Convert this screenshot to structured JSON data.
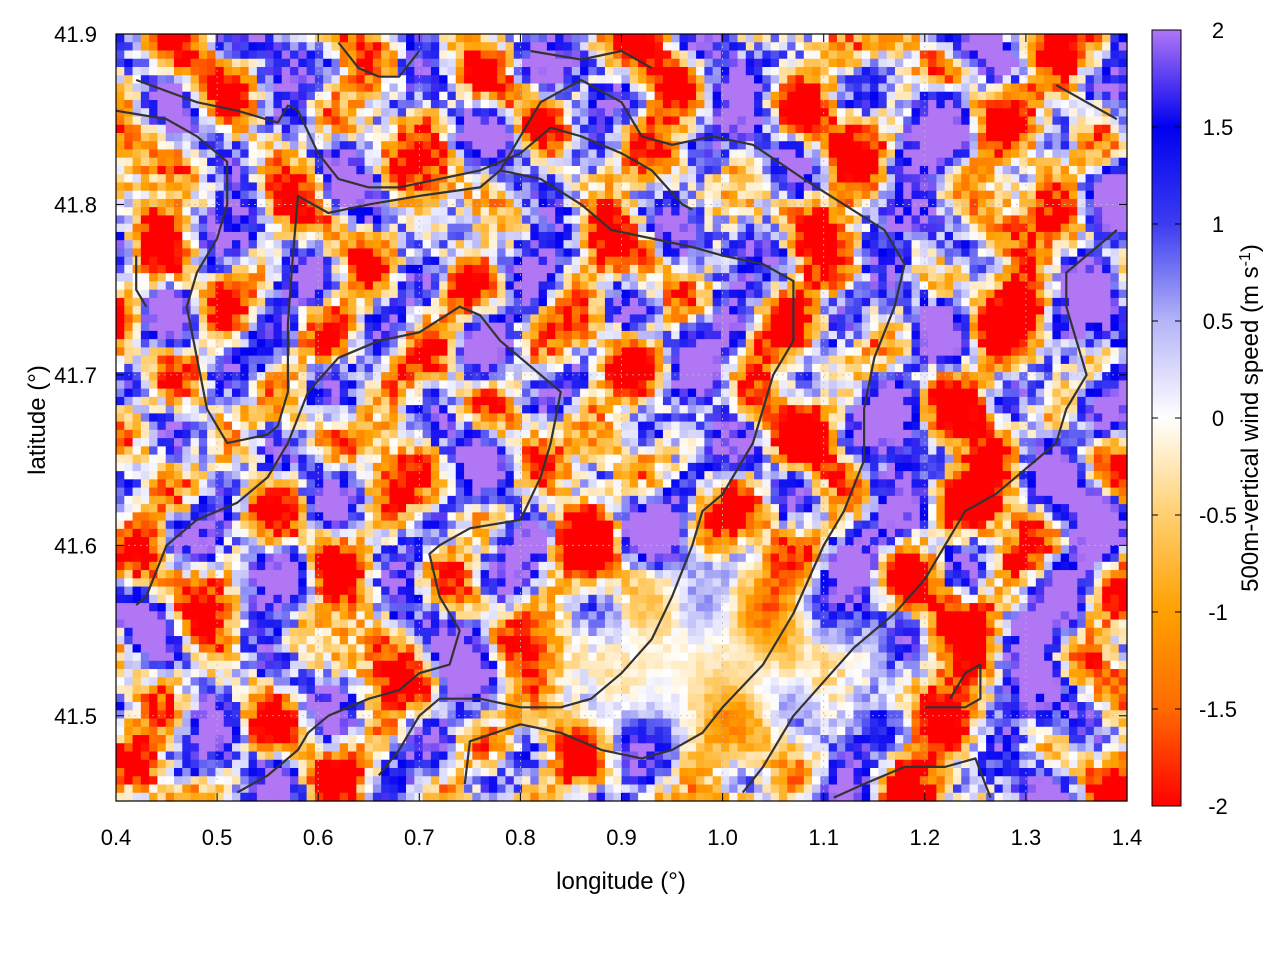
{
  "chart_data": {
    "type": "heatmap",
    "title": "",
    "xlabel": "longitude (°)",
    "ylabel": "latitude (°)",
    "colorbar_label": "500m-vertical wind speed (m s",
    "colorbar_label_sup": "-1",
    "colorbar_label_end": ")",
    "xlim": [
      0.4,
      1.4
    ],
    "ylim": [
      41.45,
      41.9
    ],
    "x_ticks": [
      0.4,
      0.5,
      0.6,
      0.7,
      0.8,
      0.9,
      1.0,
      1.1,
      1.2,
      1.3,
      1.4
    ],
    "x_tick_labels": [
      "0.4",
      "0.5",
      "0.6",
      "0.7",
      "0.8",
      "0.9",
      "1.0",
      "1.1",
      "1.2",
      "1.3",
      "1.4"
    ],
    "y_ticks": [
      41.5,
      41.6,
      41.7,
      41.8,
      41.9
    ],
    "y_tick_labels": [
      "41.5",
      "41.6",
      "41.7",
      "41.8",
      "41.9"
    ],
    "colorbar_range": [
      -2,
      2
    ],
    "colorbar_ticks": [
      2,
      1.5,
      1,
      0.5,
      0,
      -0.5,
      -1,
      -1.5,
      -2
    ],
    "colorbar_tick_labels": [
      "2",
      "1.5",
      "1",
      "0.5",
      "0",
      "-0.5",
      "-1",
      "-1.5",
      "-2"
    ],
    "colormap": [
      "#ff0000",
      "#ff6a00",
      "#ffa000",
      "#ffcf70",
      "#ffffff",
      "#b4b4f8",
      "#3c3cf0",
      "#0000f0",
      "#b076f4"
    ],
    "grid": true,
    "contour_color": "#333333",
    "contours": [
      [
        [
          0.42,
          41.873
        ],
        [
          0.48,
          41.86
        ],
        [
          0.52,
          41.855
        ],
        [
          0.56,
          41.848
        ],
        [
          0.57,
          41.858
        ],
        [
          0.58,
          41.855
        ],
        [
          0.6,
          41.83
        ],
        [
          0.62,
          41.815
        ],
        [
          0.65,
          41.81
        ],
        [
          0.68,
          41.81
        ],
        [
          0.72,
          41.815
        ],
        [
          0.76,
          41.82
        ],
        [
          0.8,
          41.83
        ],
        [
          0.83,
          41.845
        ],
        [
          0.86,
          41.84
        ],
        [
          0.9,
          41.83
        ],
        [
          0.93,
          41.82
        ],
        [
          0.96,
          41.8
        ],
        [
          0.97,
          41.797
        ]
      ],
      [
        [
          0.4,
          41.855
        ],
        [
          0.45,
          41.85
        ],
        [
          0.48,
          41.84
        ],
        [
          0.51,
          41.825
        ],
        [
          0.51,
          41.8
        ],
        [
          0.5,
          41.78
        ],
        [
          0.48,
          41.76
        ],
        [
          0.47,
          41.74
        ],
        [
          0.48,
          41.71
        ],
        [
          0.49,
          41.68
        ],
        [
          0.51,
          41.66
        ],
        [
          0.55,
          41.665
        ],
        [
          0.56,
          41.67
        ],
        [
          0.57,
          41.69
        ],
        [
          0.57,
          41.73
        ],
        [
          0.575,
          41.77
        ],
        [
          0.58,
          41.805
        ],
        [
          0.61,
          41.795
        ],
        [
          0.65,
          41.8
        ],
        [
          0.7,
          41.805
        ],
        [
          0.76,
          41.81
        ],
        [
          0.78,
          41.82
        ],
        [
          0.82,
          41.86
        ],
        [
          0.86,
          41.873
        ],
        [
          0.9,
          41.86
        ],
        [
          0.92,
          41.84
        ],
        [
          0.95,
          41.835
        ],
        [
          0.99,
          41.84
        ],
        [
          1.03,
          41.835
        ],
        [
          1.08,
          41.815
        ],
        [
          1.12,
          41.8
        ],
        [
          1.16,
          41.785
        ],
        [
          1.18,
          41.765
        ],
        [
          1.17,
          41.74
        ],
        [
          1.15,
          41.71
        ],
        [
          1.14,
          41.68
        ],
        [
          1.14,
          41.65
        ],
        [
          1.12,
          41.62
        ],
        [
          1.1,
          41.6
        ],
        [
          1.07,
          41.56
        ],
        [
          1.04,
          41.53
        ],
        [
          1.0,
          41.505
        ],
        [
          0.98,
          41.49
        ],
        [
          0.95,
          41.48
        ],
        [
          0.92,
          41.475
        ],
        [
          0.88,
          41.48
        ],
        [
          0.84,
          41.49
        ],
        [
          0.8,
          41.495
        ],
        [
          0.75,
          41.485
        ],
        [
          0.745,
          41.46
        ]
      ],
      [
        [
          0.42,
          41.565
        ],
        [
          0.43,
          41.57
        ],
        [
          0.45,
          41.6
        ],
        [
          0.48,
          41.615
        ],
        [
          0.52,
          41.625
        ],
        [
          0.55,
          41.64
        ],
        [
          0.57,
          41.66
        ],
        [
          0.59,
          41.69
        ],
        [
          0.62,
          41.71
        ],
        [
          0.66,
          41.72
        ],
        [
          0.7,
          41.725
        ],
        [
          0.74,
          41.74
        ],
        [
          0.76,
          41.735
        ],
        [
          0.78,
          41.72
        ],
        [
          0.8,
          41.71
        ],
        [
          0.82,
          41.7
        ],
        [
          0.84,
          41.69
        ],
        [
          0.83,
          41.66
        ],
        [
          0.82,
          41.64
        ],
        [
          0.8,
          41.615
        ],
        [
          0.75,
          41.61
        ],
        [
          0.72,
          41.6
        ],
        [
          0.71,
          41.595
        ],
        [
          0.72,
          41.57
        ],
        [
          0.74,
          41.55
        ],
        [
          0.73,
          41.53
        ],
        [
          0.7,
          41.525
        ],
        [
          0.68,
          41.515
        ],
        [
          0.65,
          41.51
        ],
        [
          0.61,
          41.5
        ],
        [
          0.59,
          41.49
        ],
        [
          0.58,
          41.48
        ],
        [
          0.55,
          41.465
        ],
        [
          0.52,
          41.455
        ]
      ],
      [
        [
          0.66,
          41.465
        ],
        [
          0.68,
          41.48
        ],
        [
          0.7,
          41.5
        ],
        [
          0.72,
          41.51
        ],
        [
          0.76,
          41.51
        ],
        [
          0.8,
          41.505
        ],
        [
          0.84,
          41.505
        ],
        [
          0.87,
          41.51
        ],
        [
          0.9,
          41.525
        ],
        [
          0.93,
          41.545
        ],
        [
          0.95,
          41.57
        ],
        [
          0.97,
          41.6
        ],
        [
          0.98,
          41.62
        ],
        [
          1.0,
          41.63
        ],
        [
          1.01,
          41.64
        ],
        [
          1.03,
          41.66
        ],
        [
          1.05,
          41.7
        ],
        [
          1.07,
          41.72
        ],
        [
          1.07,
          41.755
        ],
        [
          1.04,
          41.765
        ],
        [
          1.0,
          41.77
        ],
        [
          0.97,
          41.775
        ],
        [
          0.93,
          41.78
        ],
        [
          0.89,
          41.785
        ],
        [
          0.86,
          41.8
        ],
        [
          0.82,
          41.815
        ],
        [
          0.78,
          41.82
        ]
      ],
      [
        [
          1.02,
          41.455
        ],
        [
          1.04,
          41.47
        ],
        [
          1.07,
          41.5
        ],
        [
          1.1,
          41.52
        ],
        [
          1.13,
          41.54
        ],
        [
          1.17,
          41.56
        ],
        [
          1.2,
          41.58
        ],
        [
          1.22,
          41.6
        ],
        [
          1.24,
          41.62
        ],
        [
          1.27,
          41.63
        ],
        [
          1.29,
          41.64
        ],
        [
          1.31,
          41.65
        ],
        [
          1.33,
          41.66
        ],
        [
          1.34,
          41.68
        ],
        [
          1.36,
          41.7
        ],
        [
          1.35,
          41.72
        ],
        [
          1.34,
          41.74
        ],
        [
          1.34,
          41.76
        ],
        [
          1.37,
          41.775
        ],
        [
          1.39,
          41.785
        ]
      ],
      [
        [
          1.11,
          41.452
        ],
        [
          1.14,
          41.46
        ],
        [
          1.18,
          41.47
        ],
        [
          1.22,
          41.47
        ],
        [
          1.25,
          41.475
        ],
        [
          1.265,
          41.452
        ]
      ],
      [
        [
          1.2,
          41.505
        ],
        [
          1.24,
          41.505
        ],
        [
          1.255,
          41.51
        ],
        [
          1.255,
          41.53
        ],
        [
          1.24,
          41.525
        ],
        [
          1.225,
          41.51
        ]
      ],
      [
        [
          1.33,
          41.87
        ],
        [
          1.36,
          41.86
        ],
        [
          1.39,
          41.85
        ]
      ],
      [
        [
          0.62,
          41.895
        ],
        [
          0.64,
          41.88
        ],
        [
          0.66,
          41.875
        ],
        [
          0.68,
          41.875
        ],
        [
          0.7,
          41.89
        ]
      ],
      [
        [
          0.81,
          41.89
        ],
        [
          0.86,
          41.885
        ],
        [
          0.9,
          41.89
        ],
        [
          0.93,
          41.88
        ]
      ],
      [
        [
          0.42,
          41.77
        ],
        [
          0.42,
          41.75
        ],
        [
          0.43,
          41.74
        ]
      ]
    ]
  }
}
